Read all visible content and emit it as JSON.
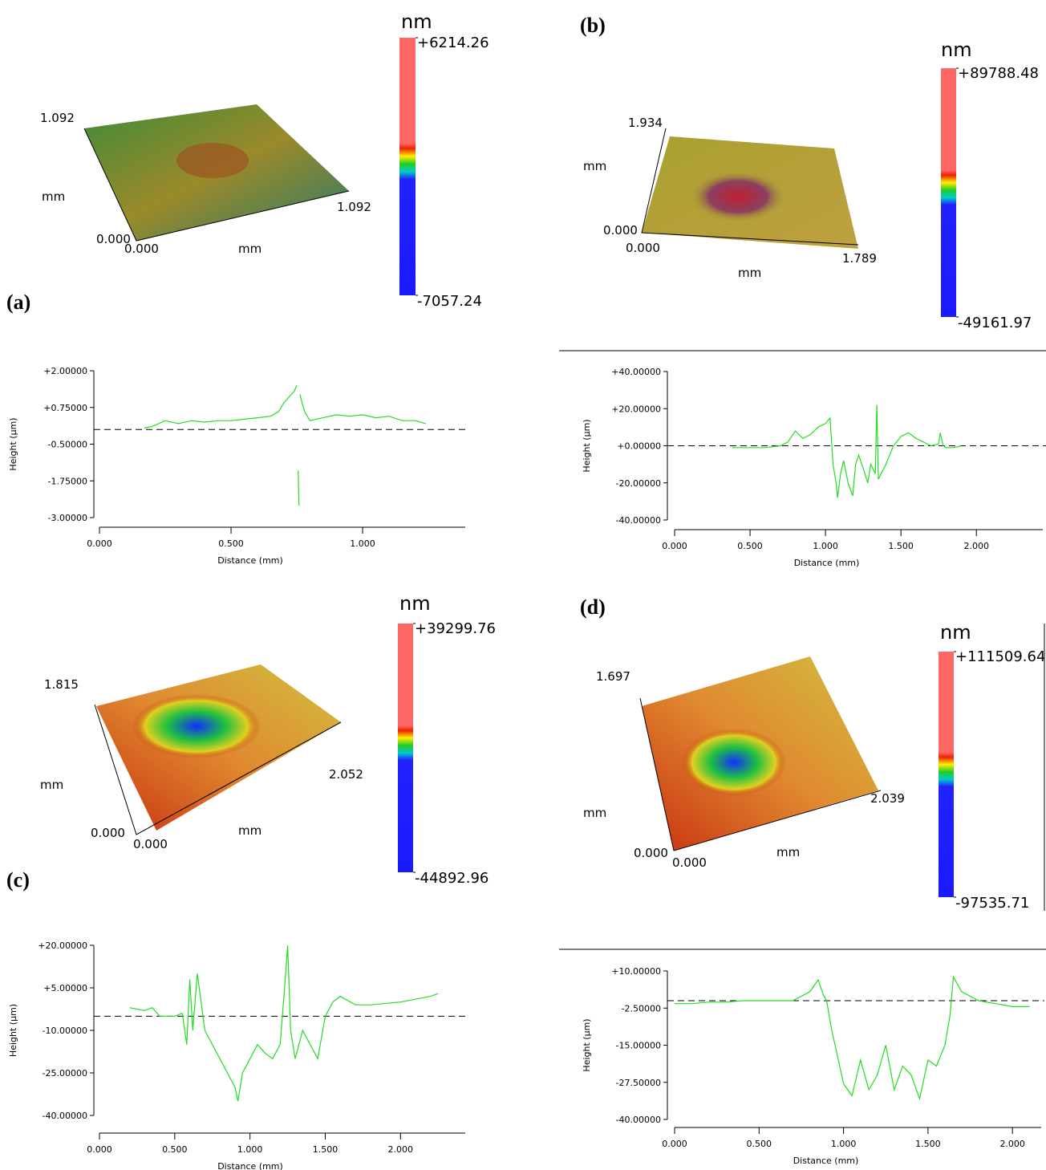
{
  "chart_data": [
    {
      "type": "line",
      "ylabel": "Height (µm)",
      "xlabel": "Distance (mm)",
      "xlim": [
        0,
        1.39
      ],
      "ylim": [
        -3,
        2
      ],
      "xticks": [
        {
          "value": 0,
          "label": "0.000"
        },
        {
          "value": 0.5,
          "label": "0.500"
        },
        {
          "value": 1,
          "label": "1.000"
        }
      ],
      "yticks": [
        {
          "value": 2,
          "label": "+2.00000"
        },
        {
          "value": 0.75,
          "label": "+0.75000"
        },
        {
          "value": -0.5,
          "label": "-0.50000"
        },
        {
          "value": -1.75,
          "label": "-1.75000"
        },
        {
          "value": -3,
          "label": "-3.00000"
        }
      ],
      "reference_y": 0,
      "series": [
        {
          "color": "#22dd22",
          "x": [
            0.17,
            0.2,
            0.25,
            0.3,
            0.35,
            0.4,
            0.45,
            0.5,
            0.55,
            0.6,
            0.65,
            0.68,
            0.7,
            0.72,
            0.74,
            0.75,
            0.752,
            0.755,
            0.758,
            0.76,
            0.762,
            0.77,
            0.78,
            0.8,
            0.85,
            0.9,
            0.95,
            1.0,
            1.05,
            1.1,
            1.15,
            1.2,
            1.24
          ],
          "values": [
            0.05,
            0.1,
            0.3,
            0.2,
            0.3,
            0.25,
            0.3,
            0.3,
            0.35,
            0.4,
            0.45,
            0.6,
            0.9,
            1.1,
            1.3,
            1.5,
            null,
            -1.4,
            -2.6,
            null,
            1.2,
            0.9,
            0.6,
            0.3,
            0.4,
            0.5,
            0.45,
            0.5,
            0.4,
            0.45,
            0.3,
            0.3,
            0.2
          ]
        }
      ]
    },
    {
      "type": "line",
      "ylabel": "Height (µm)",
      "xlabel": "Distance (mm)",
      "xlim": [
        0,
        2.44
      ],
      "ylim": [
        -40,
        40
      ],
      "xticks": [
        {
          "value": 0,
          "label": "0.000"
        },
        {
          "value": 0.5,
          "label": "0.500"
        },
        {
          "value": 1,
          "label": "1.000"
        },
        {
          "value": 1.5,
          "label": "1.500"
        },
        {
          "value": 2,
          "label": "2.000"
        }
      ],
      "yticks": [
        {
          "value": 40,
          "label": "+40.00000"
        },
        {
          "value": 20,
          "label": "+20.00000"
        },
        {
          "value": 0,
          "label": "+0.00000"
        },
        {
          "value": -20,
          "label": "-20.00000"
        },
        {
          "value": -40,
          "label": "-40.00000"
        }
      ],
      "reference_y": 0,
      "series": [
        {
          "color": "#22dd22",
          "x": [
            0.38,
            0.5,
            0.6,
            0.7,
            0.75,
            0.8,
            0.85,
            0.9,
            0.95,
            1.0,
            1.03,
            1.05,
            1.07,
            1.08,
            1.1,
            1.12,
            1.15,
            1.18,
            1.2,
            1.22,
            1.25,
            1.28,
            1.3,
            1.33,
            1.34,
            1.35,
            1.4,
            1.45,
            1.5,
            1.55,
            1.6,
            1.65,
            1.7,
            1.75,
            1.76,
            1.78,
            1.8,
            1.85,
            1.9
          ],
          "values": [
            -1,
            -1,
            -1,
            0,
            2,
            8,
            4,
            6,
            10,
            12,
            15,
            -10,
            -20,
            -28,
            -15,
            -8,
            -20,
            -27,
            -10,
            -5,
            -12,
            -20,
            -10,
            -15,
            22,
            -18,
            -10,
            0,
            5,
            7,
            4,
            2,
            0,
            1,
            7,
            0,
            -1,
            -1,
            0
          ]
        }
      ]
    },
    {
      "type": "line",
      "ylabel": "Height (µm)",
      "xlabel": "Distance (mm)",
      "xlim": [
        0,
        2.43
      ],
      "ylim": [
        -40,
        20
      ],
      "xticks": [
        {
          "value": 0,
          "label": "0.000"
        },
        {
          "value": 0.5,
          "label": "0.500"
        },
        {
          "value": 1,
          "label": "1.000"
        },
        {
          "value": 1.5,
          "label": "1.500"
        },
        {
          "value": 2,
          "label": "2.000"
        }
      ],
      "yticks": [
        {
          "value": 20,
          "label": "+20.00000"
        },
        {
          "value": 5,
          "label": "+5.00000"
        },
        {
          "value": -10,
          "label": "-10.00000"
        },
        {
          "value": -25,
          "label": "-25.00000"
        },
        {
          "value": -40,
          "label": "-40.00000"
        }
      ],
      "reference_y": -5,
      "series": [
        {
          "color": "#22dd22",
          "x": [
            0.2,
            0.3,
            0.35,
            0.4,
            0.45,
            0.5,
            0.55,
            0.58,
            0.6,
            0.62,
            0.65,
            0.7,
            0.75,
            0.8,
            0.85,
            0.9,
            0.92,
            0.95,
            1.0,
            1.05,
            1.1,
            1.15,
            1.2,
            1.23,
            1.25,
            1.27,
            1.3,
            1.35,
            1.4,
            1.45,
            1.5,
            1.55,
            1.6,
            1.7,
            1.8,
            2.0,
            2.2,
            2.25
          ],
          "values": [
            -2,
            -3,
            -2,
            -5,
            -5,
            -5,
            -4,
            -15,
            8,
            -10,
            10,
            -10,
            -15,
            -20,
            -25,
            -30,
            -35,
            -25,
            -20,
            -15,
            -18,
            -20,
            -15,
            5,
            20,
            -10,
            -20,
            -10,
            -15,
            -20,
            -5,
            0,
            2,
            -1,
            -1,
            0,
            2,
            3
          ]
        }
      ]
    },
    {
      "type": "line",
      "ylabel": "Height (µm)",
      "xlabel": "Distance (mm)",
      "xlim": [
        0,
        2.17
      ],
      "ylim": [
        -40,
        10
      ],
      "xticks": [
        {
          "value": 0,
          "label": "0.000"
        },
        {
          "value": 0.5,
          "label": "0.500"
        },
        {
          "value": 1,
          "label": "1.000"
        },
        {
          "value": 1.5,
          "label": "1.500"
        },
        {
          "value": 2,
          "label": "2.000"
        }
      ],
      "yticks": [
        {
          "value": 10,
          "label": "+10.00000"
        },
        {
          "value": -2.5,
          "label": "-2.50000"
        },
        {
          "value": -15,
          "label": "-15.00000"
        },
        {
          "value": -27.5,
          "label": "-27.50000"
        },
        {
          "value": -40,
          "label": "-40.00000"
        }
      ],
      "reference_y": 0,
      "series": [
        {
          "color": "#22dd22",
          "x": [
            0,
            0.1,
            0.2,
            0.3,
            0.4,
            0.5,
            0.6,
            0.7,
            0.8,
            0.85,
            0.88,
            0.9,
            0.93,
            0.95,
            1.0,
            1.05,
            1.1,
            1.15,
            1.2,
            1.25,
            1.3,
            1.35,
            1.4,
            1.45,
            1.5,
            1.55,
            1.6,
            1.63,
            1.65,
            1.7,
            1.8,
            1.9,
            2.0,
            2.1
          ],
          "values": [
            -1,
            -1,
            -0.5,
            -0.5,
            0,
            0,
            0,
            0,
            3,
            7,
            2,
            0,
            -10,
            -15,
            -28,
            -32,
            -20,
            -30,
            -25,
            -15,
            -30,
            -22,
            -25,
            -33,
            -20,
            -22,
            -15,
            -5,
            8,
            3,
            0,
            -1,
            -2,
            -2
          ]
        }
      ]
    }
  ],
  "surfaces": [
    {
      "panel": "(a)",
      "unit": "nm",
      "colorbar_max": {
        "value": 6214.26,
        "label": "+6214.26"
      },
      "colorbar_min": {
        "value": -7057.24,
        "label": "-7057.24"
      },
      "axis_labels": [
        "1.092",
        "mm",
        "0.000",
        "0.000",
        "mm",
        "1.092"
      ]
    },
    {
      "panel": "(b)",
      "unit": "nm",
      "colorbar_max": {
        "value": 89788.48,
        "label": "+89788.48"
      },
      "colorbar_min": {
        "value": -49161.97,
        "label": "-49161.97"
      },
      "axis_labels": [
        "1.934",
        "mm",
        "0.000",
        "0.000",
        "mm",
        "1.789"
      ]
    },
    {
      "panel": "(c)",
      "unit": "nm",
      "colorbar_max": {
        "value": 39299.76,
        "label": "+39299.76"
      },
      "colorbar_min": {
        "value": -44892.96,
        "label": "-44892.96"
      },
      "axis_labels": [
        "1.815",
        "mm",
        "0.000",
        "0.000",
        "mm",
        "2.052"
      ]
    },
    {
      "panel": "(d)",
      "unit": "nm",
      "colorbar_max": {
        "value": 111509.64,
        "label": "+111509.64"
      },
      "colorbar_min": {
        "value": -97535.71,
        "label": "-97535.71"
      },
      "axis_labels": [
        "1.697",
        "mm",
        "0.000",
        "0.000",
        "mm",
        "2.039"
      ]
    }
  ]
}
